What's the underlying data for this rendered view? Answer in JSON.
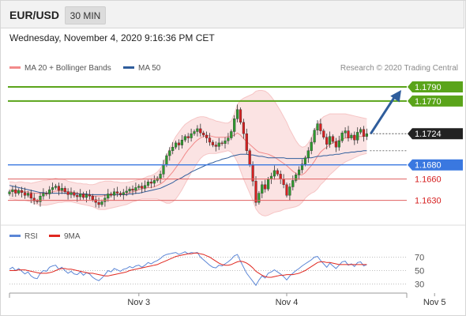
{
  "header": {
    "pair": "EUR/USD",
    "timeframe": "30 MIN"
  },
  "datetime": "Wednesday, November 4, 2020 9:16:36 PM CET",
  "legend": {
    "items": [
      {
        "label": "MA 20 + Bollinger Bands",
        "color": "#f28a8a"
      },
      {
        "label": "MA 50",
        "color": "#2f5d9c"
      }
    ],
    "copyright": "Research © 2020 Trading Central"
  },
  "rsi_legend": {
    "items": [
      {
        "label": "RSI",
        "color": "#5b86d6"
      },
      {
        "label": "9MA",
        "color": "#e0271f"
      }
    ]
  },
  "chart_data": {
    "type": "candlestick",
    "y_range": [
      1.1605,
      1.18
    ],
    "x_ticks": [
      {
        "label": "Nov 3",
        "index": 42
      },
      {
        "label": "Nov 4",
        "index": 90
      },
      {
        "label": "Nov 5",
        "index": 138
      }
    ],
    "levels": [
      {
        "value": 1.179,
        "label": "1.1790",
        "kind": "resistance"
      },
      {
        "value": 1.177,
        "label": "1.1770",
        "kind": "resistance"
      },
      {
        "value": 1.1724,
        "label": "1.1724",
        "kind": "current"
      },
      {
        "value": 1.168,
        "label": "1.1680",
        "kind": "pivot"
      },
      {
        "value": 1.166,
        "label": "1.1660",
        "kind": "support"
      },
      {
        "value": 1.163,
        "label": "1.1630",
        "kind": "support"
      }
    ],
    "arrow": {
      "from": 1.1724,
      "to": 1.179
    },
    "colors": {
      "up": "#2e9a2e",
      "down": "#d62020",
      "resistance": "#5aa41a",
      "pivot": "#3a78e0",
      "support": "#e06060",
      "current": "#222222",
      "bollinger_fill": "#fbe3e3",
      "ma20": "#f28a8a",
      "ma50": "#2f5d9c",
      "arrow": "#2f5d9c"
    },
    "close": [
      1.1642,
      1.1645,
      1.164,
      1.1644,
      1.1641,
      1.1637,
      1.164,
      1.1633,
      1.1629,
      1.1628,
      1.1636,
      1.164,
      1.1639,
      1.1645,
      1.1648,
      1.165,
      1.1644,
      1.1647,
      1.1642,
      1.1638,
      1.1641,
      1.1637,
      1.1635,
      1.1639,
      1.1634,
      1.1638,
      1.1636,
      1.1631,
      1.1627,
      1.1624,
      1.1628,
      1.1633,
      1.1639,
      1.1637,
      1.1642,
      1.164,
      1.1638,
      1.1641,
      1.1643,
      1.1646,
      1.1644,
      1.1648,
      1.165,
      1.1647,
      1.1651,
      1.1656,
      1.1654,
      1.1658,
      1.1661,
      1.1667,
      1.168,
      1.1693,
      1.17,
      1.1705,
      1.1711,
      1.1708,
      1.1715,
      1.172,
      1.1718,
      1.1724,
      1.1727,
      1.1731,
      1.1725,
      1.1722,
      1.1718,
      1.1712,
      1.1708,
      1.1706,
      1.1711,
      1.171,
      1.1714,
      1.1718,
      1.1727,
      1.1745,
      1.1758,
      1.174,
      1.1724,
      1.17,
      1.168,
      1.1657,
      1.1627,
      1.164,
      1.1652,
      1.1646,
      1.166,
      1.1664,
      1.1672,
      1.1667,
      1.166,
      1.1652,
      1.1637,
      1.1649,
      1.1658,
      1.1666,
      1.1673,
      1.1681,
      1.169,
      1.17,
      1.1712,
      1.1729,
      1.1738,
      1.1728,
      1.1719,
      1.1709,
      1.172,
      1.1713,
      1.1705,
      1.1714,
      1.1725,
      1.1728,
      1.1718,
      1.1722,
      1.1715,
      1.1726,
      1.173,
      1.172,
      1.1724
    ],
    "bb_upper": [
      1.1656,
      1.1656,
      1.1655,
      1.1656,
      1.1656,
      1.1655,
      1.1655,
      1.1654,
      1.1655,
      1.1656,
      1.1657,
      1.1658,
      1.1658,
      1.1659,
      1.166,
      1.1661,
      1.166,
      1.166,
      1.1659,
      1.1657,
      1.1656,
      1.1655,
      1.1654,
      1.1654,
      1.1653,
      1.1653,
      1.1652,
      1.1652,
      1.1653,
      1.1655,
      1.1656,
      1.1657,
      1.1657,
      1.1657,
      1.1656,
      1.1656,
      1.1655,
      1.1655,
      1.1655,
      1.1656,
      1.1657,
      1.1658,
      1.1659,
      1.166,
      1.1662,
      1.1664,
      1.1665,
      1.1667,
      1.167,
      1.1675,
      1.1683,
      1.1693,
      1.1703,
      1.1712,
      1.172,
      1.1726,
      1.1732,
      1.1737,
      1.174,
      1.1743,
      1.1745,
      1.1747,
      1.1748,
      1.1748,
      1.1747,
      1.1745,
      1.1744,
      1.1742,
      1.1741,
      1.174,
      1.1739,
      1.1739,
      1.1742,
      1.1752,
      1.1765,
      1.1771,
      1.1774,
      1.1776,
      1.1778,
      1.178,
      1.1784,
      1.1785,
      1.1785,
      1.1784,
      1.1781,
      1.1776,
      1.177,
      1.1763,
      1.1756,
      1.1748,
      1.174,
      1.173,
      1.1722,
      1.1714,
      1.1708,
      1.1705,
      1.1706,
      1.1711,
      1.1718,
      1.1728,
      1.1738,
      1.1744,
      1.1748,
      1.175,
      1.1752,
      1.1752,
      1.1752,
      1.1752,
      1.1752,
      1.1752,
      1.1751,
      1.175,
      1.1749,
      1.1748,
      1.1747,
      1.1746,
      1.1745
    ],
    "bb_lower": [
      1.1632,
      1.1632,
      1.1631,
      1.163,
      1.163,
      1.163,
      1.1629,
      1.1628,
      1.1626,
      1.1624,
      1.1623,
      1.1623,
      1.1623,
      1.1624,
      1.1625,
      1.1626,
      1.1627,
      1.1627,
      1.1628,
      1.1628,
      1.1628,
      1.1627,
      1.1626,
      1.1625,
      1.1624,
      1.1623,
      1.1622,
      1.1621,
      1.1619,
      1.1617,
      1.1617,
      1.1617,
      1.1618,
      1.1619,
      1.162,
      1.1621,
      1.1622,
      1.1623,
      1.1624,
      1.1626,
      1.1628,
      1.1629,
      1.1631,
      1.1632,
      1.1632,
      1.1632,
      1.1632,
      1.1632,
      1.1632,
      1.163,
      1.1628,
      1.1626,
      1.1626,
      1.1628,
      1.1632,
      1.1638,
      1.1645,
      1.1653,
      1.1661,
      1.1669,
      1.1676,
      1.1683,
      1.1689,
      1.1693,
      1.1695,
      1.1696,
      1.1696,
      1.1696,
      1.1697,
      1.1698,
      1.1699,
      1.17,
      1.1698,
      1.1692,
      1.1684,
      1.1672,
      1.166,
      1.165,
      1.164,
      1.163,
      1.1618,
      1.1612,
      1.1609,
      1.1608,
      1.1609,
      1.1611,
      1.1613,
      1.1614,
      1.1615,
      1.1617,
      1.1618,
      1.1619,
      1.162,
      1.1621,
      1.1623,
      1.1627,
      1.1633,
      1.1637,
      1.164,
      1.1642,
      1.1646,
      1.1652,
      1.1656,
      1.1661,
      1.1666,
      1.167,
      1.1674,
      1.1678,
      1.1681,
      1.1684,
      1.1686,
      1.1688,
      1.169,
      1.1692,
      1.1694,
      1.1695,
      1.1696
    ],
    "ma20": [
      1.1644,
      1.1644,
      1.1643,
      1.1643,
      1.1643,
      1.1642,
      1.1642,
      1.1641,
      1.164,
      1.164,
      1.164,
      1.164,
      1.164,
      1.1641,
      1.1642,
      1.1643,
      1.1643,
      1.1643,
      1.1643,
      1.1642,
      1.1642,
      1.1641,
      1.164,
      1.1639,
      1.1638,
      1.1638,
      1.1637,
      1.1636,
      1.1636,
      1.1636,
      1.1636,
      1.1637,
      1.1637,
      1.1638,
      1.1638,
      1.1638,
      1.1638,
      1.1639,
      1.1639,
      1.1641,
      1.1642,
      1.1643,
      1.1645,
      1.1646,
      1.1647,
      1.1648,
      1.1648,
      1.1649,
      1.1651,
      1.1653,
      1.1656,
      1.166,
      1.1665,
      1.167,
      1.1676,
      1.1682,
      1.1688,
      1.1695,
      1.1701,
      1.1706,
      1.1711,
      1.1715,
      1.1718,
      1.172,
      1.1721,
      1.1721,
      1.172,
      1.1719,
      1.1719,
      1.1719,
      1.1719,
      1.172,
      1.172,
      1.1722,
      1.1725,
      1.1722,
      1.1717,
      1.1713,
      1.1709,
      1.1705,
      1.1701,
      1.1698,
      1.1697,
      1.1696,
      1.1695,
      1.1693,
      1.1691,
      1.1688,
      1.1685,
      1.1682,
      1.1679,
      1.1675,
      1.1671,
      1.1668,
      1.1666,
      1.1666,
      1.1669,
      1.1674,
      1.1679,
      1.1685,
      1.1692,
      1.1698,
      1.1702,
      1.1705,
      1.1709,
      1.1711,
      1.1713,
      1.1715,
      1.1716,
      1.1718,
      1.1718,
      1.1719,
      1.1719,
      1.172,
      1.172,
      1.172,
      1.1721
    ],
    "ma50": [
      1.1651,
      1.165,
      1.1649,
      1.1648,
      1.1647,
      1.1646,
      1.1645,
      1.1644,
      1.1643,
      1.1642,
      1.1641,
      1.1641,
      1.164,
      1.164,
      1.164,
      1.164,
      1.164,
      1.164,
      1.164,
      1.164,
      1.164,
      1.1639,
      1.1639,
      1.1639,
      1.1639,
      1.1639,
      1.1638,
      1.1638,
      1.1638,
      1.1638,
      1.1638,
      1.1638,
      1.1638,
      1.1638,
      1.1638,
      1.1638,
      1.1638,
      1.1638,
      1.1638,
      1.1639,
      1.1639,
      1.164,
      1.164,
      1.1641,
      1.1642,
      1.1643,
      1.1644,
      1.1645,
      1.1646,
      1.1647,
      1.1649,
      1.1651,
      1.1653,
      1.1655,
      1.1658,
      1.166,
      1.1662,
      1.1665,
      1.1667,
      1.167,
      1.1672,
      1.1674,
      1.1676,
      1.1678,
      1.168,
      1.1682,
      1.1683,
      1.1685,
      1.1686,
      1.1688,
      1.1689,
      1.169,
      1.1692,
      1.1693,
      1.1694,
      1.1695,
      1.1695,
      1.1695,
      1.1694,
      1.1694,
      1.1693,
      1.1692,
      1.1692,
      1.1691,
      1.169,
      1.169,
      1.169,
      1.169,
      1.169,
      1.169,
      1.1689,
      1.1689,
      1.1689,
      1.1689,
      1.1689,
      1.1689,
      1.1689,
      1.169,
      1.169,
      1.1691,
      1.1692,
      1.1692,
      1.1693,
      1.1693,
      1.1694,
      1.1694,
      1.1695,
      1.1695,
      1.1696,
      1.1697,
      1.1697,
      1.1698,
      1.1698,
      1.1699,
      1.1699,
      1.17,
      1.17
    ],
    "rsi": {
      "y_range": [
        20,
        80
      ],
      "levels": [
        70,
        50,
        30
      ],
      "rsi": [
        52,
        55,
        50,
        53,
        49,
        45,
        48,
        42,
        39,
        38,
        46,
        50,
        49,
        55,
        57,
        58,
        52,
        55,
        50,
        46,
        49,
        45,
        44,
        48,
        43,
        47,
        45,
        40,
        37,
        35,
        39,
        44,
        50,
        48,
        53,
        51,
        49,
        52,
        53,
        56,
        54,
        57,
        58,
        55,
        58,
        62,
        60,
        63,
        65,
        68,
        72,
        74,
        75,
        76,
        77,
        74,
        76,
        78,
        75,
        77,
        76,
        77,
        70,
        66,
        62,
        58,
        55,
        54,
        58,
        57,
        60,
        63,
        67,
        72,
        74,
        64,
        55,
        46,
        40,
        34,
        28,
        36,
        42,
        39,
        46,
        48,
        51,
        48,
        45,
        41,
        36,
        42,
        46,
        50,
        53,
        57,
        60,
        63,
        66,
        70,
        71,
        65,
        60,
        55,
        61,
        57,
        53,
        58,
        63,
        64,
        58,
        60,
        56,
        62,
        63,
        57,
        59
      ],
      "ma9": [
        50,
        50,
        50,
        51,
        51,
        51,
        50,
        49,
        48,
        47,
        46,
        46,
        46,
        47,
        48,
        50,
        52,
        53,
        53,
        52,
        52,
        51,
        50,
        49,
        48,
        47,
        46,
        46,
        45,
        44,
        43,
        42,
        42,
        43,
        44,
        45,
        46,
        47,
        48,
        50,
        51,
        52,
        53,
        54,
        55,
        56,
        57,
        58,
        59,
        61,
        63,
        65,
        67,
        69,
        71,
        72,
        73,
        74,
        75,
        75,
        76,
        76,
        75,
        74,
        72,
        70,
        67,
        64,
        61,
        59,
        58,
        58,
        59,
        61,
        63,
        64,
        63,
        61,
        58,
        54,
        49,
        46,
        43,
        41,
        40,
        40,
        41,
        42,
        43,
        43,
        44,
        44,
        44,
        45,
        46,
        48,
        50,
        53,
        56,
        59,
        62,
        63,
        63,
        62,
        62,
        61,
        60,
        59,
        59,
        59,
        59,
        59,
        59,
        59,
        59,
        59,
        59
      ]
    }
  }
}
